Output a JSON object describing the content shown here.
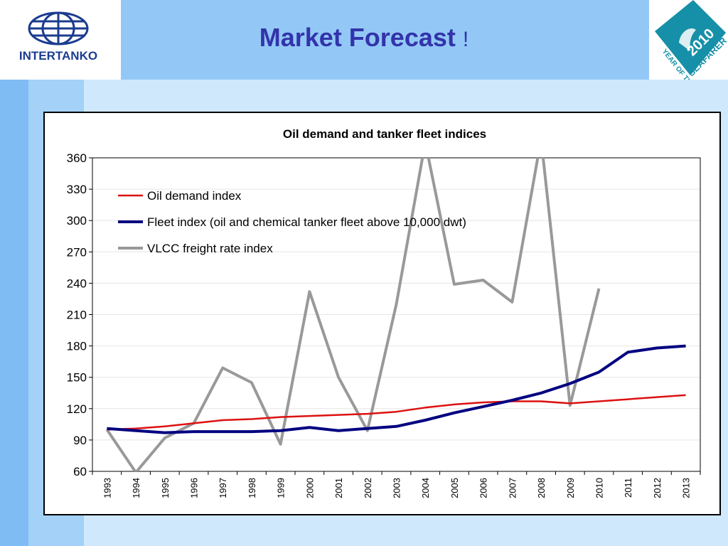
{
  "header": {
    "title": "Market Forecast",
    "title_suffix": "!",
    "logo_text": "INTERTANKO",
    "badge_line1": "YEAR OF THE",
    "badge_line2": "SEAFARER",
    "badge_year": "2010"
  },
  "colors": {
    "oil_demand": "#dd1111",
    "fleet": "#000080",
    "vlcc": "#999999",
    "title": "#3333aa"
  },
  "chart_data": {
    "type": "line",
    "title": "Oil demand and tanker fleet indices",
    "x": [
      "1993",
      "1994",
      "1995",
      "1996",
      "1997",
      "1998",
      "1999",
      "2000",
      "2001",
      "2002",
      "2003",
      "2004",
      "2005",
      "2006",
      "2007",
      "2008",
      "2009",
      "2010",
      "2011",
      "2012",
      "2013"
    ],
    "ylim": [
      60,
      360
    ],
    "yticks": [
      60,
      90,
      120,
      150,
      180,
      210,
      240,
      270,
      300,
      330,
      360
    ],
    "grid": true,
    "legend_position": "top-left",
    "series": [
      {
        "name": "Oil demand index",
        "color": "#dd1111",
        "values": [
          100,
          101,
          103,
          106,
          109,
          110,
          112,
          113,
          114,
          115,
          117,
          121,
          124,
          126,
          127,
          127,
          125,
          127,
          129,
          131,
          133
        ]
      },
      {
        "name": "Fleet index (oil and chemical tanker fleet above 10,000 dwt)",
        "color": "#000080",
        "values": [
          101,
          99,
          97,
          98,
          98,
          98,
          99,
          102,
          99,
          101,
          103,
          109,
          116,
          122,
          128,
          135,
          144,
          155,
          174,
          178,
          180
        ]
      },
      {
        "name": "VLCC freight rate index",
        "color": "#999999",
        "values": [
          100,
          59,
          92,
          106,
          159,
          145,
          86,
          232,
          150,
          99,
          220,
          375,
          239,
          243,
          222,
          378,
          123,
          235,
          null,
          null,
          null
        ]
      }
    ]
  }
}
